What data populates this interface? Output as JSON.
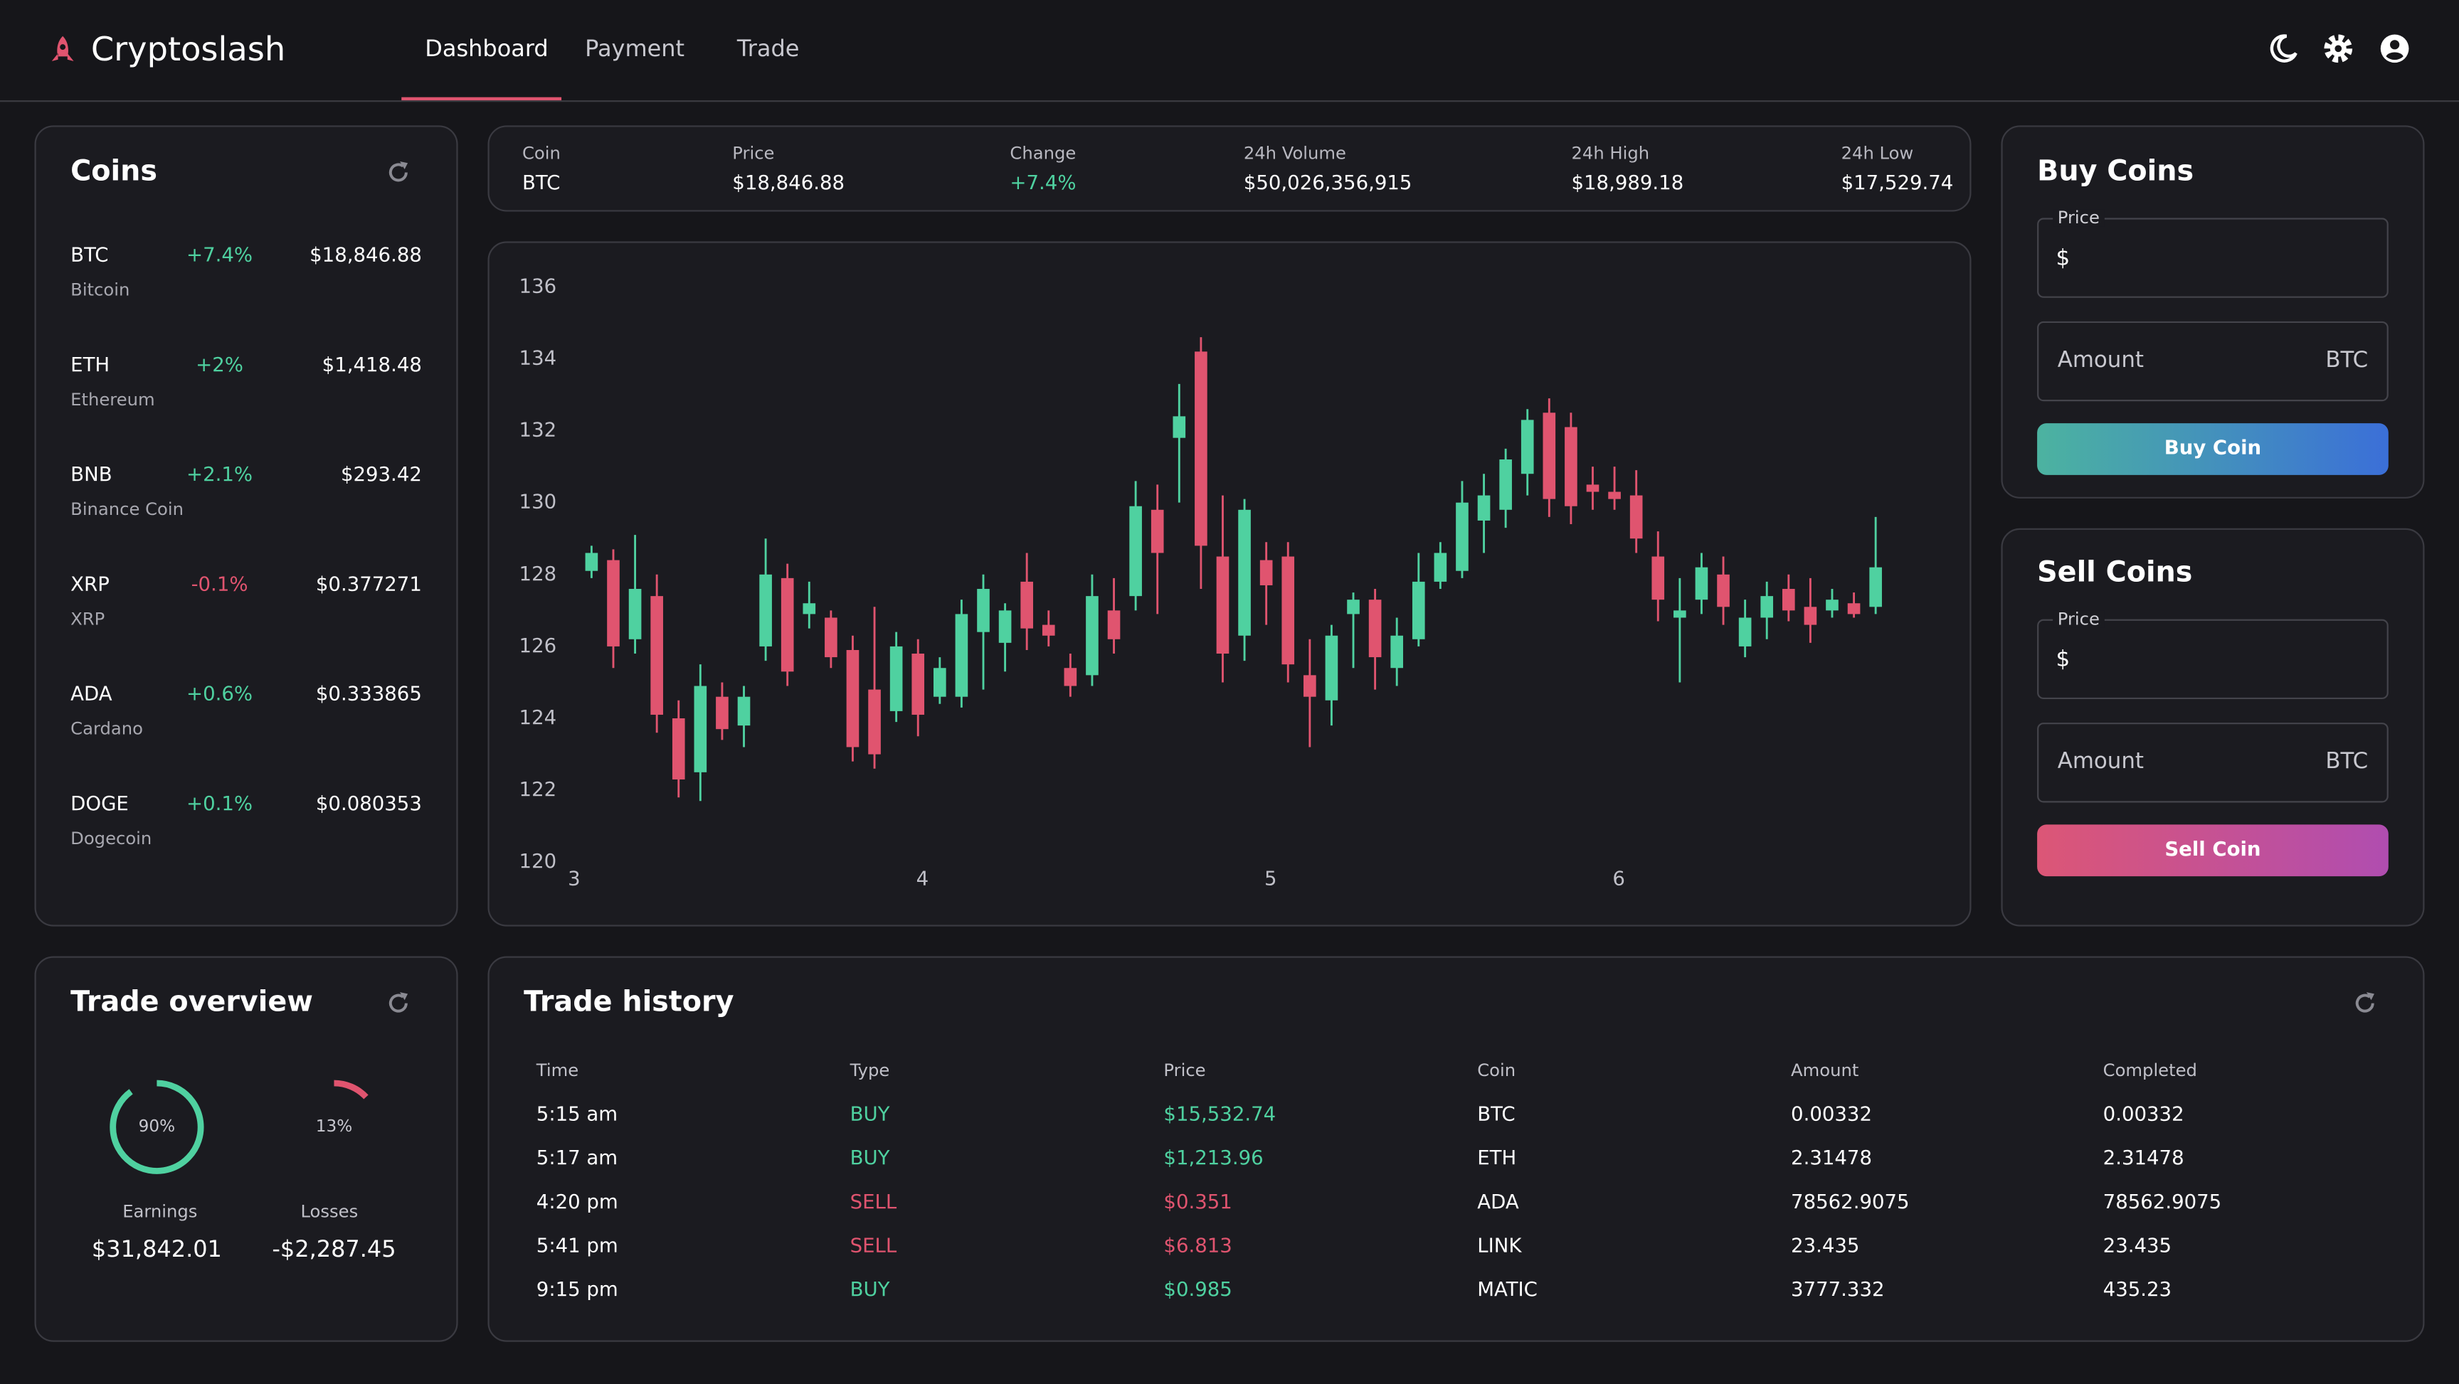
{
  "header": {
    "brand": "Cryptoslash",
    "nav": [
      "Dashboard",
      "Payment",
      "Trade"
    ]
  },
  "coins": {
    "title": "Coins",
    "items": [
      {
        "symbol": "BTC",
        "name": "Bitcoin",
        "change": "+7.4%",
        "price": "$18,846.88",
        "color": "#4fd1a0"
      },
      {
        "symbol": "ETH",
        "name": "Ethereum",
        "change": "+2%",
        "price": "$1,418.48",
        "color": "#4fd1a0"
      },
      {
        "symbol": "BNB",
        "name": "Binance Coin",
        "change": "+2.1%",
        "price": "$293.42",
        "color": "#4fd1a0"
      },
      {
        "symbol": "XRP",
        "name": "XRP",
        "change": "-0.1%",
        "price": "$0.377271",
        "color": "#e0546f"
      },
      {
        "symbol": "ADA",
        "name": "Cardano",
        "change": "+0.6%",
        "price": "$0.333865",
        "color": "#4fd1a0"
      },
      {
        "symbol": "DOGE",
        "name": "Dogecoin",
        "change": "+0.1%",
        "price": "$0.080353",
        "color": "#4fd1a0"
      }
    ]
  },
  "ticker": {
    "columns": [
      {
        "label": "Coin",
        "value": "BTC",
        "color": "#ffffff"
      },
      {
        "label": "Price",
        "value": "$18,846.88",
        "color": "#ffffff"
      },
      {
        "label": "Change",
        "value": "+7.4%",
        "color": "#4fd1a0"
      },
      {
        "label": "24h Volume",
        "value": "$50,026,356,915",
        "color": "#ffffff"
      },
      {
        "label": "24h High",
        "value": "$18,989.18",
        "color": "#ffffff"
      },
      {
        "label": "24h Low",
        "value": "$17,529.74",
        "color": "#ffffff"
      }
    ]
  },
  "chart_data": {
    "type": "candlestick",
    "up_color": "#4fd1a0",
    "down_color": "#e0546f",
    "x": [
      3.05,
      3.1125,
      3.175,
      3.2375,
      3.3,
      3.3625,
      3.425,
      3.4875,
      3.55,
      3.6125,
      3.675,
      3.7375,
      3.8,
      3.8625,
      3.925,
      3.9875,
      4.05,
      4.1125,
      4.175,
      4.2375,
      4.3,
      4.3625,
      4.425,
      4.4875,
      4.55,
      4.6125,
      4.675,
      4.7375,
      4.8,
      4.8625,
      4.925,
      4.9875,
      5.05,
      5.1125,
      5.175,
      5.2375,
      5.3,
      5.3625,
      5.425,
      5.4875,
      5.55,
      5.6125,
      5.675,
      5.7375,
      5.8,
      5.8625,
      5.925,
      5.9875,
      6.05,
      6.1125,
      6.175,
      6.2375,
      6.3,
      6.3625,
      6.425,
      6.4875,
      6.55,
      6.6125,
      6.675,
      6.7375
    ],
    "open": [
      128.1,
      128.4,
      126.2,
      127.4,
      124.0,
      122.5,
      124.6,
      123.8,
      126.0,
      127.9,
      126.9,
      126.8,
      125.9,
      124.8,
      124.2,
      125.8,
      124.6,
      124.6,
      126.4,
      126.1,
      127.8,
      126.6,
      125.4,
      125.2,
      127.0,
      127.4,
      129.8,
      131.8,
      134.2,
      128.5,
      126.3,
      128.4,
      128.5,
      125.2,
      124.5,
      126.9,
      127.3,
      125.4,
      126.2,
      127.8,
      128.1,
      129.5,
      129.8,
      130.8,
      132.5,
      132.1,
      130.5,
      130.3,
      130.2,
      128.5,
      126.8,
      127.3,
      128.0,
      126.0,
      126.8,
      127.6,
      127.1,
      127.0,
      127.2,
      127.1
    ],
    "high": [
      128.8,
      128.7,
      129.1,
      128.0,
      124.5,
      125.5,
      125.0,
      124.9,
      129.0,
      128.3,
      127.8,
      127.0,
      126.3,
      127.1,
      126.4,
      126.2,
      125.7,
      127.3,
      128.0,
      127.2,
      128.6,
      127.0,
      125.8,
      128.0,
      127.9,
      130.6,
      130.5,
      133.3,
      134.6,
      130.2,
      130.1,
      128.9,
      128.9,
      126.2,
      126.6,
      127.5,
      127.6,
      126.8,
      128.6,
      128.9,
      130.6,
      130.8,
      131.5,
      132.6,
      132.9,
      132.5,
      131.0,
      131.0,
      130.9,
      129.2,
      127.9,
      128.6,
      128.5,
      127.3,
      127.8,
      128.0,
      127.9,
      127.6,
      127.5,
      129.6
    ],
    "low": [
      127.9,
      125.4,
      125.8,
      123.6,
      121.8,
      121.7,
      123.4,
      123.2,
      125.6,
      124.9,
      126.5,
      125.4,
      122.8,
      122.6,
      123.9,
      123.5,
      124.4,
      124.3,
      124.8,
      125.3,
      125.9,
      126.0,
      124.6,
      124.9,
      125.8,
      127.0,
      126.9,
      130.0,
      127.6,
      125.0,
      125.6,
      126.6,
      125.0,
      123.2,
      123.8,
      125.4,
      124.8,
      124.9,
      126.0,
      127.6,
      127.9,
      128.6,
      129.3,
      130.2,
      129.6,
      129.4,
      129.8,
      129.8,
      128.6,
      126.7,
      125.0,
      126.9,
      126.6,
      125.7,
      126.2,
      126.7,
      126.1,
      126.8,
      126.8,
      126.9
    ],
    "close": [
      128.6,
      126.0,
      127.6,
      124.1,
      122.3,
      124.9,
      123.7,
      124.6,
      128.0,
      125.3,
      127.2,
      125.7,
      123.2,
      123.0,
      126.0,
      124.1,
      125.4,
      126.9,
      127.6,
      127.0,
      126.5,
      126.3,
      124.9,
      127.4,
      126.2,
      129.9,
      128.6,
      132.4,
      128.8,
      125.8,
      129.8,
      127.7,
      125.5,
      124.6,
      126.3,
      127.3,
      125.7,
      126.3,
      127.8,
      128.6,
      130.0,
      130.2,
      131.2,
      132.3,
      130.1,
      129.9,
      130.3,
      130.1,
      129.0,
      127.3,
      127.0,
      128.2,
      127.1,
      126.8,
      127.4,
      127.0,
      126.6,
      127.3,
      126.9,
      128.2
    ],
    "xlim": [
      2.95,
      6.94
    ],
    "xticks": [
      3,
      4,
      5,
      6
    ],
    "ylim": [
      120,
      136
    ],
    "yticks": [
      120,
      122,
      124,
      126,
      128,
      130,
      132,
      134,
      136
    ]
  },
  "buy": {
    "title": "Buy Coins",
    "price_label": "Price",
    "currency": "$",
    "amount_label": "Amount",
    "unit": "BTC",
    "button": "Buy Coin"
  },
  "sell": {
    "title": "Sell Coins",
    "price_label": "Price",
    "currency": "$",
    "amount_label": "Amount",
    "unit": "BTC",
    "button": "Sell Coin"
  },
  "overview": {
    "title": "Trade overview",
    "items": [
      {
        "value": 90,
        "value_label": "90%",
        "name": "Earnings",
        "amount": "$31,842.01",
        "color": "#4fd1a0"
      },
      {
        "value": 13,
        "value_label": "13%",
        "name": "Losses",
        "amount": "-$2,287.45",
        "color": "#e0546f"
      }
    ]
  },
  "history": {
    "title": "Trade history",
    "columns": [
      "Time",
      "Type",
      "Price",
      "Coin",
      "Amount",
      "Completed"
    ],
    "rows": [
      [
        "5:15 am",
        "BUY",
        "$15,532.74",
        "BTC",
        "0.00332",
        "0.00332"
      ],
      [
        "5:17 am",
        "BUY",
        "$1,213.96",
        "ETH",
        "2.31478",
        "2.31478"
      ],
      [
        "4:20 pm",
        "SELL",
        "$0.351",
        "ADA",
        "78562.9075",
        "78562.9075"
      ],
      [
        "5:41 pm",
        "SELL",
        "$6.813",
        "LINK",
        "23.435",
        "23.435"
      ],
      [
        "9:15 pm",
        "BUY",
        "$0.985",
        "MATIC",
        "3777.332",
        "435.23"
      ]
    ],
    "row_colors": [
      "#4fd1a0",
      "#4fd1a0",
      "#e0546f",
      "#e0546f",
      "#4fd1a0"
    ]
  }
}
